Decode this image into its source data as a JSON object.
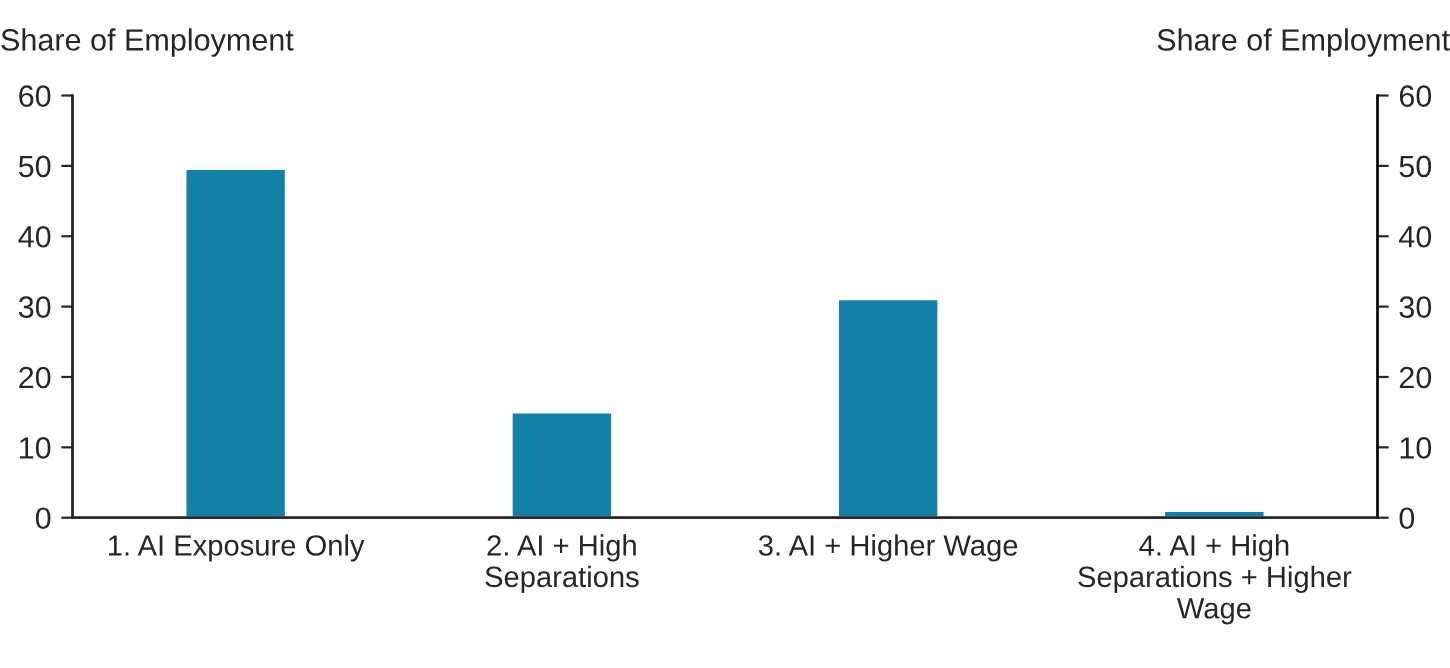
{
  "chart_data": {
    "type": "bar",
    "ylabel": "Share of Employment",
    "y2label": "Share of Employment",
    "categories": [
      "1. AI Exposure Only",
      "2. AI + High\nSeparations",
      "3. AI + Higher Wage",
      "4. AI + High\nSeparations + Higher\nWage"
    ],
    "values": [
      49.6,
      15.0,
      31.1,
      1.0
    ],
    "color": "#1380a8",
    "ylim": [
      0,
      60
    ],
    "yticks": [
      0,
      10,
      20,
      30,
      40,
      50,
      60
    ],
    "y2lim": [
      0,
      60
    ],
    "y2ticks": [
      0,
      10,
      20,
      30,
      40,
      50,
      60
    ],
    "grid": false,
    "legend": false
  }
}
